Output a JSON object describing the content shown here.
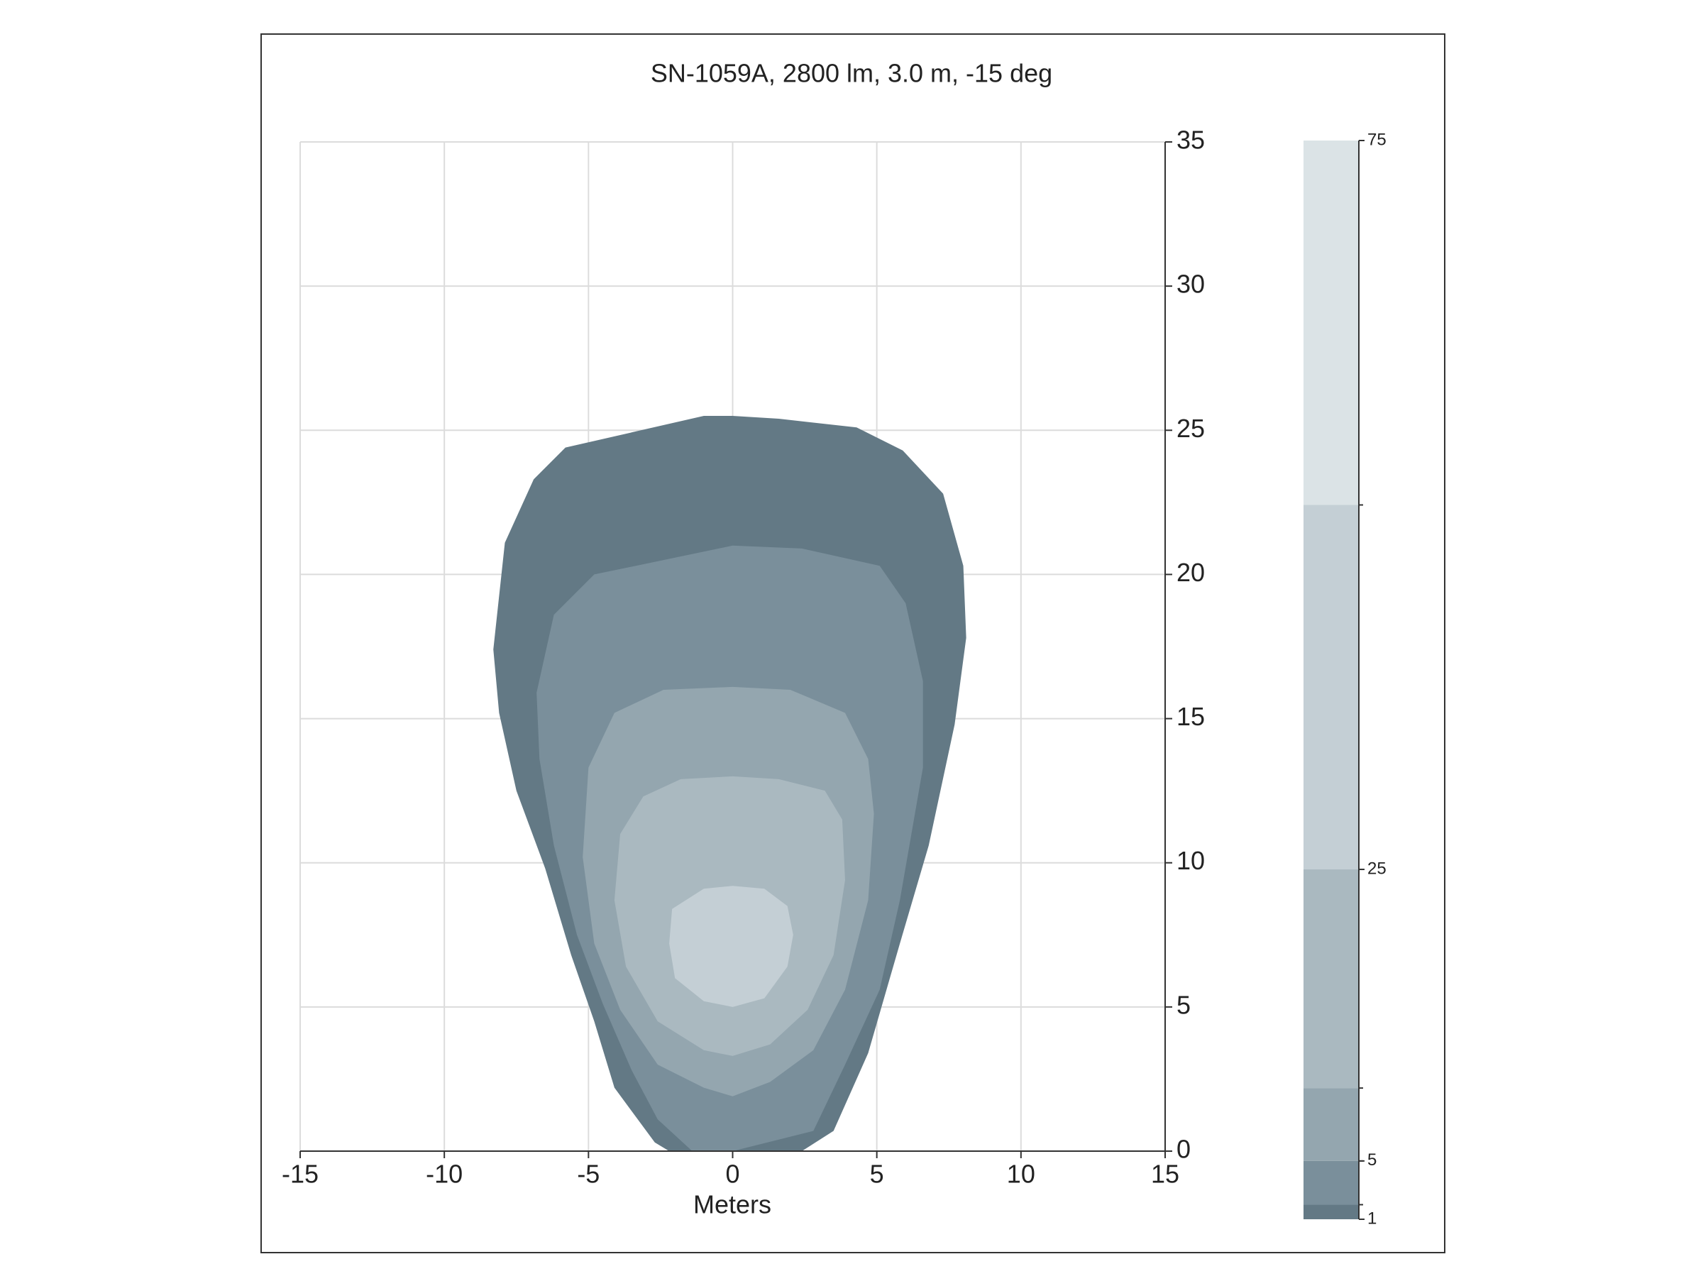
{
  "chart_data": {
    "type": "contour",
    "title": "SN-1059A, 2800 lm, 3.0 m, -15 deg",
    "x_label": "Meters",
    "xlim": [
      -15,
      15
    ],
    "xticks": [
      -15,
      -10,
      -5,
      0,
      5,
      10,
      15
    ],
    "ylim": [
      0,
      35
    ],
    "yticks": [
      0,
      5,
      10,
      15,
      20,
      25,
      30,
      35
    ],
    "grid": true,
    "levels": [
      1,
      2,
      5,
      10,
      25,
      50,
      75
    ],
    "colors": [
      "#637985",
      "#7a8f9b",
      "#94a6af",
      "#aab9c0",
      "#c4cfd5",
      "#dbe3e6"
    ],
    "clim": [
      1,
      75
    ],
    "colorbar_ticks": [
      1,
      5,
      25,
      75
    ],
    "contours": [
      {
        "level": 1,
        "x": [
          0,
          -1.0,
          -5.8,
          -6.9,
          -7.9,
          -8.3,
          -8.1,
          -7.5,
          -6.5,
          -5.6,
          -4.8,
          -4.1,
          -2.7,
          -2.2,
          2.4,
          3.5,
          4.7,
          5.8,
          6.8,
          7.7,
          8.1,
          8.0,
          7.3,
          5.9,
          4.3,
          1.6
        ],
        "y": [
          25.5,
          25.5,
          24.4,
          23.3,
          21.1,
          17.4,
          15.2,
          12.5,
          9.8,
          6.8,
          4.5,
          2.2,
          0.3,
          0,
          0,
          0.7,
          3.4,
          7.2,
          10.6,
          14.8,
          17.8,
          20.3,
          22.8,
          24.3,
          25.1,
          25.4
        ]
      },
      {
        "level": 2,
        "x": [
          0,
          -4.8,
          -6.2,
          -6.8,
          -6.7,
          -6.2,
          -5.4,
          -4.5,
          -3.5,
          -2.6,
          -1.4,
          0,
          2.8,
          3.9,
          5.1,
          5.8,
          6.6,
          6.6,
          6.0,
          5.1,
          2.4
        ],
        "y": [
          21.0,
          20.0,
          18.6,
          15.9,
          13.6,
          10.6,
          7.5,
          5.1,
          2.8,
          1.1,
          0,
          0,
          0.7,
          3.0,
          5.6,
          8.7,
          13.3,
          16.3,
          19.0,
          20.3,
          20.9
        ]
      },
      {
        "level": 5,
        "x": [
          0,
          -2.4,
          -4.1,
          -5.0,
          -5.2,
          -4.8,
          -3.9,
          -2.6,
          -1.0,
          0,
          1.3,
          2.8,
          3.9,
          4.7,
          4.9,
          4.7,
          3.9,
          2.0
        ],
        "y": [
          16.1,
          16.0,
          15.2,
          13.3,
          10.2,
          7.2,
          4.9,
          3.0,
          2.2,
          1.9,
          2.4,
          3.5,
          5.6,
          8.7,
          11.7,
          13.6,
          15.2,
          16.0
        ]
      },
      {
        "level": 10,
        "x": [
          0,
          -1.8,
          -3.1,
          -3.9,
          -4.1,
          -3.7,
          -2.6,
          -1.0,
          0,
          1.3,
          2.6,
          3.5,
          3.9,
          3.8,
          3.2,
          1.6
        ],
        "y": [
          13.0,
          12.9,
          12.3,
          11.0,
          8.7,
          6.4,
          4.5,
          3.5,
          3.3,
          3.7,
          4.9,
          6.8,
          9.4,
          11.5,
          12.5,
          12.9
        ]
      },
      {
        "level": 25,
        "x": [
          0,
          -1.0,
          -2.1,
          -2.2,
          -2.0,
          -1.0,
          0,
          1.1,
          1.9,
          2.1,
          1.9,
          1.1
        ],
        "y": [
          9.2,
          9.1,
          8.4,
          7.2,
          6.0,
          5.2,
          5.0,
          5.3,
          6.4,
          7.5,
          8.5,
          9.1
        ]
      }
    ]
  }
}
